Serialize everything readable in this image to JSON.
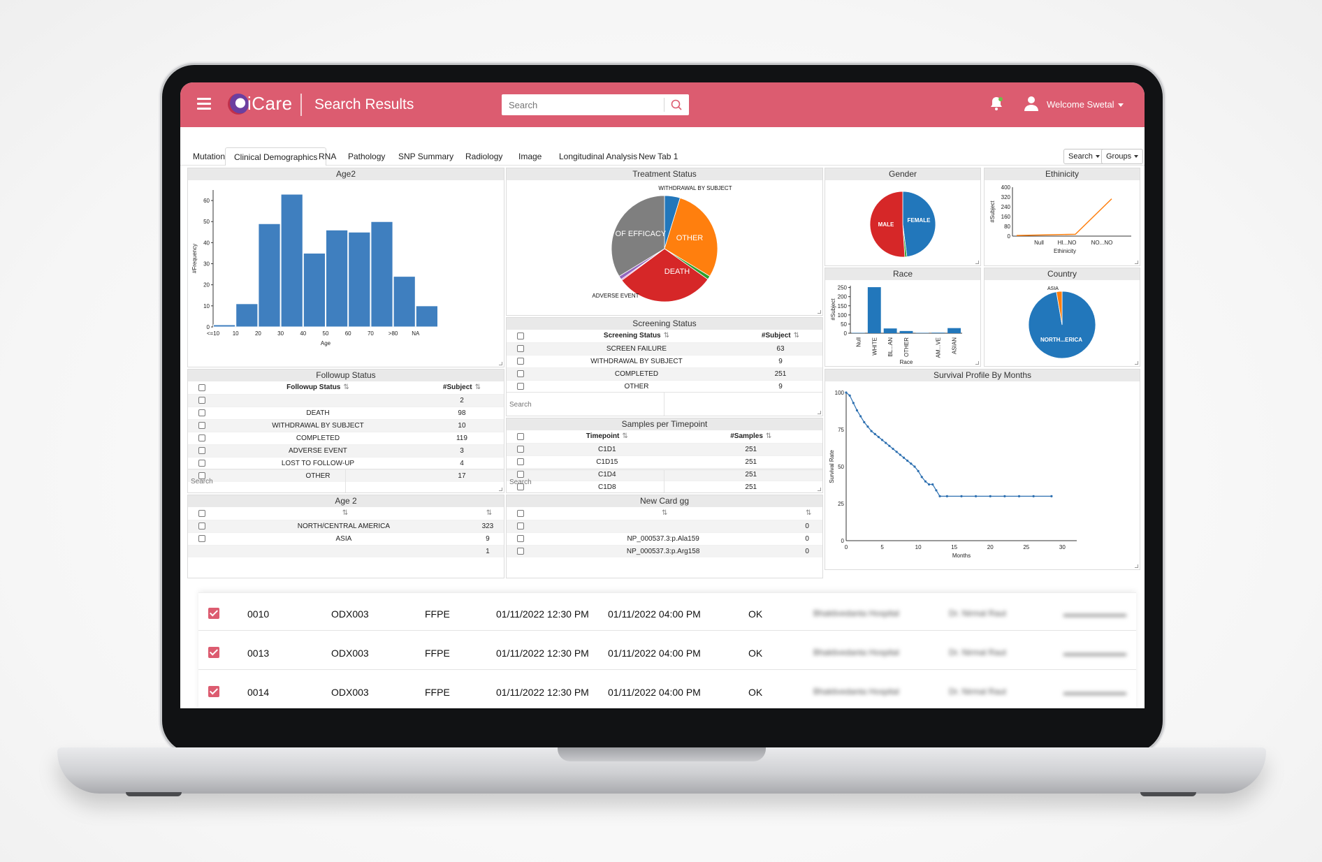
{
  "header": {
    "brand": "iCare",
    "page_title": "Search Results",
    "search_placeholder": "Search",
    "welcome": "Welcome Swetal",
    "color": "#dc5c70"
  },
  "tabs": [
    "Mutation",
    "Clinical Demographics",
    "RNA",
    "Pathology",
    "SNP Summary",
    "Radiology",
    "Image",
    "Longitudinal Analysis",
    "New Tab 1"
  ],
  "active_tab": "Clinical Demographics",
  "toolbar": {
    "search_label": "Search",
    "groups_label": "Groups"
  },
  "cards": {
    "age2_hist": {
      "title": "Age2",
      "xlabel": "Age",
      "ylabel": "#Frequency"
    },
    "treatment_status": {
      "title": "Treatment Status"
    },
    "gender": {
      "title": "Gender"
    },
    "ethnicity": {
      "title": "Ethinicity",
      "xlabel": "Ethinicity",
      "ylabel": "#Subject"
    },
    "race": {
      "title": "Race",
      "xlabel": "Race",
      "ylabel": "#Subject"
    },
    "country": {
      "title": "Country"
    },
    "followup": {
      "title": "Followup Status",
      "columns": [
        "Followup Status",
        "#Subject"
      ],
      "rows": [
        [
          "",
          "2"
        ],
        [
          "DEATH",
          "98"
        ],
        [
          "WITHDRAWAL BY SUBJECT",
          "10"
        ],
        [
          "COMPLETED",
          "119"
        ],
        [
          "ADVERSE EVENT",
          "3"
        ],
        [
          "LOST TO FOLLOW-UP",
          "4"
        ],
        [
          "OTHER",
          "17"
        ]
      ],
      "search_placeholder": "Search"
    },
    "screening": {
      "title": "Screening Status",
      "columns": [
        "Screening Status",
        "#Subject"
      ],
      "rows": [
        [
          "SCREEN FAILURE",
          "63"
        ],
        [
          "WITHDRAWAL BY SUBJECT",
          "9"
        ],
        [
          "COMPLETED",
          "251"
        ],
        [
          "OTHER",
          "9"
        ]
      ],
      "search_placeholder": "Search"
    },
    "samples": {
      "title": "Samples per Timepoint",
      "columns": [
        "Timepoint",
        "#Samples"
      ],
      "rows": [
        [
          "C1D1",
          "251"
        ],
        [
          "C1D15",
          "251"
        ],
        [
          "C1D4",
          "251"
        ],
        [
          "C1D8",
          "251"
        ]
      ],
      "search_placeholder": "Search"
    },
    "age2_table": {
      "title": "Age 2",
      "columns": [
        "",
        ""
      ],
      "rows": [
        [
          "NORTH/CENTRAL AMERICA",
          "323"
        ],
        [
          "ASIA",
          "9"
        ],
        [
          "",
          "1"
        ]
      ]
    },
    "newcard": {
      "title": "New Card gg",
      "columns": [
        "",
        ""
      ],
      "rows": [
        [
          "",
          "0"
        ],
        [
          "NP_000537.3:p.Ala159",
          "0"
        ],
        [
          "NP_000537.3:p.Arg158",
          "0"
        ]
      ]
    },
    "survival": {
      "title": "Survival Profile By Months",
      "xlabel": "Months",
      "ylabel": "Survival Rate"
    }
  },
  "records": [
    {
      "id": "0010",
      "code": "ODX003",
      "type": "FFPE",
      "start": "01/11/2022 12:30 PM",
      "end": "01/11/2022 04:00 PM",
      "status": "OK",
      "hospital": "Bhaktivedanta Hospital",
      "doctor": "Dr. Nirmal Raut"
    },
    {
      "id": "0013",
      "code": "ODX003",
      "type": "FFPE",
      "start": "01/11/2022 12:30 PM",
      "end": "01/11/2022 04:00 PM",
      "status": "OK",
      "hospital": "Bhaktivedanta Hospital",
      "doctor": "Dr. Nirmal Raut"
    },
    {
      "id": "0014",
      "code": "ODX003",
      "type": "FFPE",
      "start": "01/11/2022 12:30 PM",
      "end": "01/11/2022 04:00 PM",
      "status": "OK",
      "hospital": "Bhaktivedanta Hospital",
      "doctor": "Dr. Nirmal Raut"
    }
  ],
  "chart_data": [
    {
      "type": "bar",
      "title": "Age2",
      "categories": [
        "<=10",
        "10",
        "20",
        "30",
        "40",
        "50",
        "60",
        "70",
        ">80",
        "NA"
      ],
      "values": [
        1,
        11,
        49,
        63,
        35,
        46,
        45,
        50,
        24,
        10
      ],
      "xlabel": "Age",
      "ylabel": "#Frequency",
      "ylim": [
        0,
        65
      ],
      "yticks": [
        0,
        10,
        20,
        30,
        40,
        50,
        60
      ],
      "color": "#3f7fbf"
    },
    {
      "type": "pie",
      "title": "Treatment Status",
      "labels": [
        "WITHDRAWAL BY SUBJECT",
        "OTHER",
        "",
        "DEATH",
        "",
        "ADVERSE EVENT",
        "LACK OF EFFICACY"
      ],
      "values": [
        13,
        79,
        3,
        82,
        1,
        3,
        92
      ],
      "colors": [
        "#2277bb",
        "#ff7f0e",
        "#2ca02c",
        "#d62728",
        "#e377c2",
        "#9467bd",
        "#7f7f7f"
      ],
      "visible_labels": [
        "WITHDRAWAL BY SUBJECT",
        "LACK OF EFFICACY",
        "OTHER",
        "DEATH",
        "ADVERSE EVENT"
      ]
    },
    {
      "type": "pie",
      "title": "Gender",
      "labels": [
        "FEMALE",
        "",
        "MALE"
      ],
      "values": [
        48,
        1,
        51
      ],
      "colors": [
        "#2277bb",
        "#2ca02c",
        "#d62728"
      ]
    },
    {
      "type": "line",
      "title": "Ethinicity",
      "categories": [
        "Null",
        "HI...NO",
        "NO...NO"
      ],
      "values": [
        5,
        15,
        305
      ],
      "xlabel": "Ethinicity",
      "ylabel": "#Subject",
      "ylim": [
        0,
        400
      ],
      "yticks": [
        0,
        80,
        160,
        240,
        320,
        400
      ],
      "color": "#ff7f0e"
    },
    {
      "type": "bar",
      "title": "Race",
      "categories": [
        "Null",
        "WHITE",
        "BL...AN",
        "OTHER",
        "",
        "AM...VE",
        "ASIAN"
      ],
      "values": [
        2,
        252,
        26,
        12,
        2,
        3,
        28
      ],
      "xlabel": "Race",
      "ylabel": "#Subject",
      "ylim": [
        0,
        260
      ],
      "yticks": [
        0,
        50,
        100,
        150,
        200,
        250
      ],
      "color": "#2277bb"
    },
    {
      "type": "pie",
      "title": "Country",
      "labels": [
        "NORTH...ERICA",
        "ASIA"
      ],
      "values": [
        323,
        9
      ],
      "colors": [
        "#2277bb",
        "#ff7f0e"
      ]
    },
    {
      "type": "line",
      "title": "Survival Profile By Months",
      "xlabel": "Months",
      "ylabel": "Survival Rate",
      "xlim": [
        0,
        32
      ],
      "ylim": [
        0,
        100
      ],
      "xticks": [
        0,
        5,
        10,
        15,
        20,
        25,
        30
      ],
      "yticks": [
        0,
        25,
        50,
        75,
        100
      ],
      "x": [
        0,
        0.5,
        1,
        1.5,
        2,
        2.5,
        3,
        3.5,
        4,
        4.5,
        5,
        5.5,
        6,
        6.5,
        7,
        7.5,
        8,
        8.5,
        9,
        9.5,
        10,
        10.5,
        11,
        11.5,
        12,
        12.5,
        13,
        14,
        16,
        18,
        20,
        22,
        24,
        26,
        28.5
      ],
      "y": [
        100,
        98,
        93,
        88,
        84,
        80,
        77,
        74,
        72,
        70,
        68,
        66,
        64,
        62,
        60,
        58,
        56,
        54,
        52,
        50,
        47,
        43,
        40,
        38,
        38,
        34,
        30,
        30,
        30,
        30,
        30,
        30,
        30,
        30,
        30
      ],
      "color": "#2c6fb0"
    }
  ]
}
